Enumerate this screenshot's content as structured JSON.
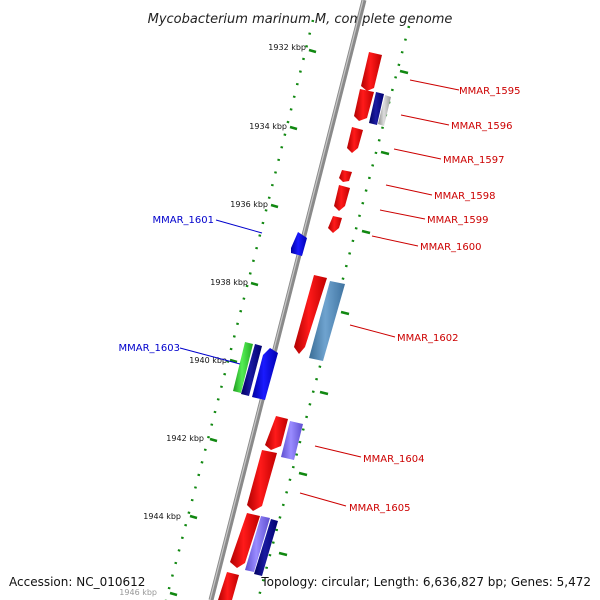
{
  "title": "Mycobacterium marinum M, complete genome",
  "accession": "Accession: NC_010612",
  "topology": "Topology: circular; Length: 6,636,827 bp; Genes: 5,472",
  "colors": {
    "forward_gene": "#ff0000",
    "reverse_gene": "#0000ff",
    "label_forward": "#cc0000",
    "label_reverse": "#0000cc",
    "backbone": "#808080",
    "ticks": "#118811",
    "steelblue_gene": "#4682b4",
    "purple_gene": "#7b68ee",
    "navy_gene": "#000080",
    "green_gene": "#33cc33",
    "grey_gene": "#b0b0b0"
  },
  "kbp_ticks": [
    "1932 kbp",
    "1934 kbp",
    "1936 kbp",
    "1938 kbp",
    "1940 kbp",
    "1942 kbp",
    "1944 kbp",
    "1946 kbp"
  ],
  "gene_labels": {
    "mmar_1595": "MMAR_1595",
    "mmar_1596": "MMAR_1596",
    "mmar_1597": "MMAR_1597",
    "mmar_1598": "MMAR_1598",
    "mmar_1599": "MMAR_1599",
    "mmar_1600": "MMAR_1600",
    "mmar_1601": "MMAR_1601",
    "mmar_1602": "MMAR_1602",
    "mmar_1603": "MMAR_1603",
    "mmar_1604": "MMAR_1604",
    "mmar_1605": "MMAR_1605"
  }
}
